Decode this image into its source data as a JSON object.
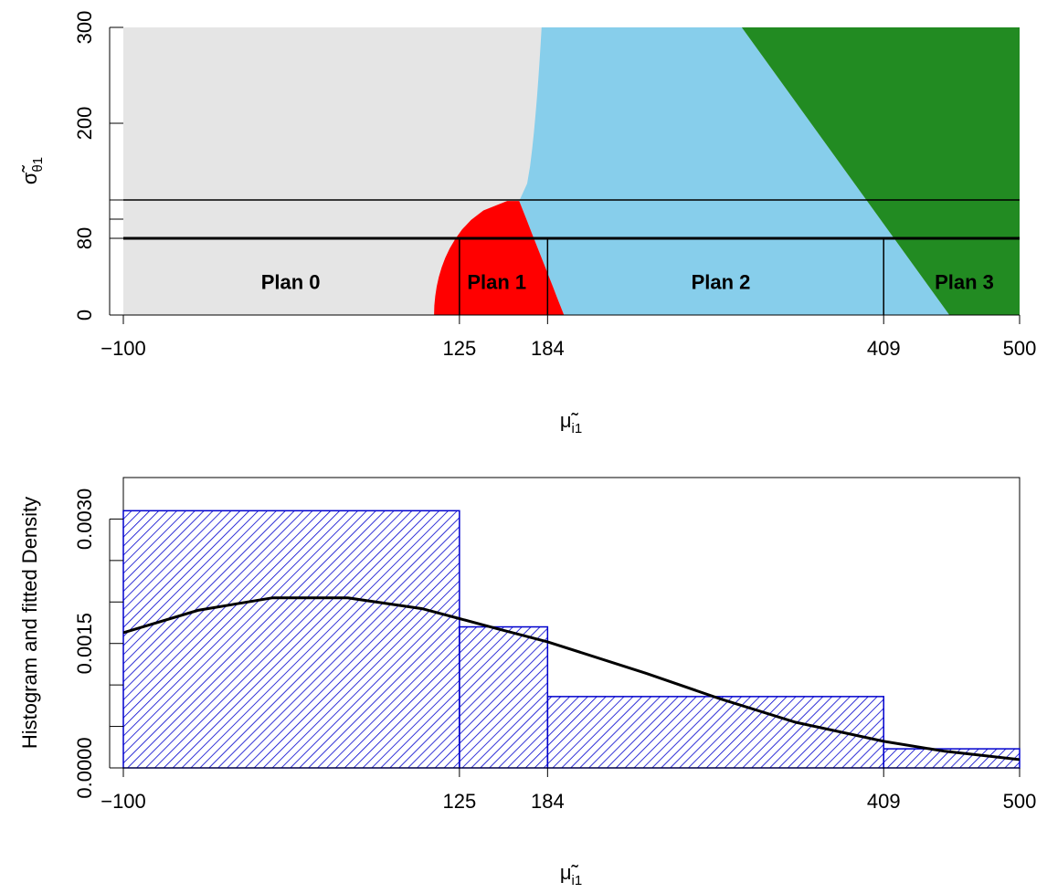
{
  "colors": {
    "plan0": "#e5e5e5",
    "plan1": "#ff0000",
    "plan2": "#87ceeb",
    "plan3": "#228b22",
    "histogram": "#0000cd",
    "density": "#000000"
  },
  "chart_data": [
    {
      "type": "heatmap",
      "title": "",
      "xlabel": "μ̃",
      "xlabel_sub": "i1",
      "ylabel": "σ̃",
      "ylabel_sub": "θ1",
      "xlim": [
        -100,
        500
      ],
      "ylim": [
        0,
        300
      ],
      "x_ticks": [
        -100,
        125,
        184,
        409,
        500
      ],
      "x_tick_labels": [
        "−100",
        "125",
        "184",
        "409",
        "500"
      ],
      "y_ticks": [
        0,
        80,
        100,
        120,
        200,
        300
      ],
      "y_tick_labels": [
        "0",
        "80",
        "",
        "",
        "200",
        "300"
      ],
      "regions": [
        {
          "name": "Plan 0",
          "label_x": 12,
          "label_y": 35
        },
        {
          "name": "Plan 1",
          "label_x": 150,
          "label_y": 35
        },
        {
          "name": "Plan 2",
          "label_x": 300,
          "label_y": 35
        },
        {
          "name": "Plan 3",
          "label_x": 463,
          "label_y": 35
        }
      ],
      "boundaries": {
        "plan0_plan1_base_x": 108,
        "plan1_peak": {
          "x": 165,
          "y": 119
        },
        "plan1_plan2_base_x": 195,
        "plan0_plan2_top_x": 180,
        "plan2_plan3_top_x": 314,
        "plan2_plan3_base_x": 453
      },
      "reference_lines": {
        "h_thin": [
          120
        ],
        "h_thick": [
          80
        ],
        "v_segments": [
          {
            "x": 125,
            "y0": 0,
            "y1": 80
          },
          {
            "x": 184,
            "y0": 0,
            "y1": 80
          },
          {
            "x": 409,
            "y0": 0,
            "y1": 80
          }
        ]
      }
    },
    {
      "type": "bar",
      "title": "",
      "xlabel": "μ̃",
      "xlabel_sub": "i1",
      "ylabel": "Histogram and fitted Density",
      "xlim": [
        -100,
        500
      ],
      "ylim": [
        0,
        0.0035
      ],
      "x_ticks": [
        -100,
        125,
        184,
        409,
        500
      ],
      "x_tick_labels": [
        "−100",
        "125",
        "184",
        "409",
        "500"
      ],
      "y_ticks": [
        0,
        0.0005,
        0.001,
        0.0015,
        0.002,
        0.0025,
        0.003
      ],
      "y_tick_labels": [
        "0.0000",
        "",
        "",
        "0.0015",
        "",
        "",
        "0.0030"
      ],
      "bins": [
        {
          "from": -100,
          "to": 125,
          "density": 0.0031
        },
        {
          "from": 125,
          "to": 184,
          "density": 0.0017
        },
        {
          "from": 184,
          "to": 409,
          "density": 0.00086
        },
        {
          "from": 409,
          "to": 500,
          "density": 0.00023
        }
      ],
      "density_curve": {
        "x": [
          -100,
          -50,
          0,
          50,
          100,
          125,
          150,
          184,
          250,
          300,
          350,
          409,
          450,
          500
        ],
        "y": [
          0.00163,
          0.0019,
          0.00205,
          0.00205,
          0.00192,
          0.0018,
          0.00168,
          0.00152,
          0.00114,
          0.00083,
          0.00055,
          0.00032,
          0.0002,
          0.0001
        ]
      }
    }
  ]
}
